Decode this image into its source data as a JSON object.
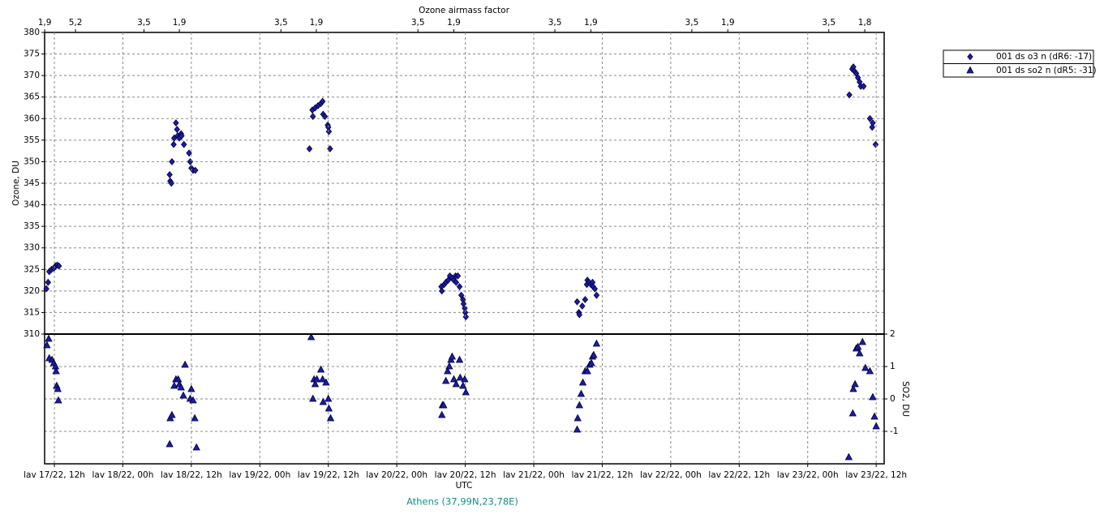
{
  "chart_data": [
    {
      "type": "scatter",
      "ylabel": "Ozone, DU",
      "x2label": "Ozone airmass factor",
      "xlim": [
        10.29,
        157.4
      ],
      "ylim": [
        310,
        380
      ],
      "yticks": [
        310,
        315,
        320,
        325,
        330,
        335,
        340,
        345,
        350,
        355,
        360,
        365,
        370,
        375,
        380
      ],
      "x2ticks": [
        {
          "value": 10.3,
          "label": "1,9"
        },
        {
          "value": 15.7,
          "label": "5,2"
        },
        {
          "value": 27.7,
          "label": "3,5"
        },
        {
          "value": 33.9,
          "label": "1,9"
        },
        {
          "value": 51.7,
          "label": "3,5"
        },
        {
          "value": 57.9,
          "label": "1,9"
        },
        {
          "value": 75.7,
          "label": "3,5"
        },
        {
          "value": 82.0,
          "label": "1,9"
        },
        {
          "value": 99.7,
          "label": "3,5"
        },
        {
          "value": 106.0,
          "label": "1,9"
        },
        {
          "value": 123.7,
          "label": "3,5"
        },
        {
          "value": 130.0,
          "label": "1,9"
        },
        {
          "value": 147.7,
          "label": "3,5"
        },
        {
          "value": 154.0,
          "label": "1,8"
        }
      ],
      "grid": true,
      "series": [
        {
          "name": "001 ds o3  n (dR6: -17)",
          "color": "#1c1ca8",
          "marker": "diamond",
          "x": [
            10.6,
            10.9,
            11.1,
            11.5,
            11.9,
            12.2,
            12.5,
            12.8,
            32.2,
            32.3,
            32.5,
            32.6,
            32.9,
            33.0,
            33.3,
            33.5,
            33.6,
            33.9,
            34.2,
            34.3,
            34.7,
            35.6,
            35.8,
            36.0,
            36.3,
            36.7,
            56.7,
            57.2,
            57.3,
            57.7,
            58.2,
            58.7,
            59.0,
            59.1,
            59.4,
            59.9,
            60.0,
            60.1,
            60.3,
            79.8,
            79.9,
            80.3,
            80.6,
            81.0,
            81.3,
            81.7,
            82.0,
            82.3,
            82.4,
            82.7,
            83.0,
            83.3,
            83.6,
            83.7,
            83.9,
            84.0,
            84.1,
            103.6,
            103.9,
            104.0,
            104.5,
            105.0,
            105.3,
            105.4,
            105.7,
            106.0,
            106.3,
            106.4,
            106.7,
            107.0,
            151.3,
            151.8,
            152.0,
            152.2,
            152.5,
            152.8,
            153.1,
            153.3,
            153.8,
            154.9,
            155.3,
            155.4,
            155.9
          ],
          "values": [
            320.5,
            322,
            324.5,
            325,
            325.3,
            325.8,
            326,
            325.8,
            347,
            345.5,
            345,
            350,
            354,
            355.5,
            359,
            357.5,
            356,
            355.5,
            356.5,
            356,
            354,
            352,
            350,
            348.5,
            348,
            348,
            353,
            362,
            360.5,
            362.5,
            363,
            363.5,
            364,
            361,
            360.5,
            358.5,
            358,
            357,
            353,
            321,
            320,
            321.5,
            322,
            322.5,
            323.5,
            323,
            322.5,
            323.5,
            322,
            323.5,
            321,
            319,
            318,
            317,
            316,
            315,
            314,
            317.5,
            315,
            314.5,
            316.5,
            318,
            321.5,
            322.5,
            322,
            321.5,
            322,
            321,
            320.5,
            319,
            365.5,
            371.5,
            372,
            371,
            370.5,
            369.5,
            368.5,
            367.5,
            367.5,
            360,
            358,
            359,
            354
          ]
        }
      ]
    },
    {
      "type": "scatter",
      "y2label": "SO2, DU",
      "xlabel": "UTC",
      "caption": "Athens (37,99N,23,78E)",
      "xlim": [
        10.29,
        157.4
      ],
      "y2lim": [
        -2,
        2
      ],
      "y2ticks": [
        -1,
        0,
        1,
        2
      ],
      "xticks": [
        {
          "value": 12,
          "label": "lav 17/22, 12h"
        },
        {
          "value": 24,
          "label": "lav 18/22, 00h"
        },
        {
          "value": 36,
          "label": "lav 18/22, 12h"
        },
        {
          "value": 48,
          "label": "lav 19/22, 00h"
        },
        {
          "value": 60,
          "label": "lav 19/22, 12h"
        },
        {
          "value": 72,
          "label": "lav 20/22, 00h"
        },
        {
          "value": 84,
          "label": "lav 20/22, 12h"
        },
        {
          "value": 96,
          "label": "lav 21/22, 00h"
        },
        {
          "value": 108,
          "label": "lav 21/22, 12h"
        },
        {
          "value": 120,
          "label": "lav 22/22, 00h"
        },
        {
          "value": 132,
          "label": "lav 22/22, 12h"
        },
        {
          "value": 144,
          "label": "lav 23/22, 00h"
        },
        {
          "value": 156,
          "label": "lav 23/22, 12h"
        }
      ],
      "grid": true,
      "series": [
        {
          "name": "001 ds so2 n (dR5: -31)",
          "color": "#1c1ca8",
          "marker": "triangle",
          "axis": "y2",
          "x": [
            10.7,
            11.0,
            11.1,
            11.6,
            11.9,
            12.2,
            12.3,
            12.4,
            12.6,
            12.7,
            32.2,
            32.3,
            32.6,
            33.0,
            33.3,
            33.7,
            33.9,
            34.2,
            34.6,
            34.9,
            35.8,
            36.0,
            36.3,
            36.6,
            36.9,
            57.0,
            57.3,
            57.5,
            57.7,
            58.0,
            58.7,
            59.0,
            59.1,
            59.6,
            60.0,
            60.1,
            60.4,
            79.9,
            80.0,
            80.2,
            80.6,
            80.9,
            81.2,
            81.5,
            81.7,
            82.0,
            82.4,
            83.0,
            83.1,
            83.6,
            83.9,
            84.1,
            103.6,
            103.7,
            104.0,
            104.3,
            104.6,
            105.0,
            105.4,
            105.8,
            106.1,
            106.3,
            106.5,
            107.0,
            151.2,
            151.9,
            152.0,
            152.3,
            152.5,
            152.8,
            153.1,
            153.6,
            154.1,
            154.9,
            155.4,
            155.7,
            156.0
          ],
          "values": [
            1.65,
            1.85,
            1.25,
            1.2,
            1.1,
            1.0,
            0.85,
            0.4,
            0.3,
            -0.05,
            -1.4,
            -0.6,
            -0.5,
            0.4,
            0.6,
            0.6,
            0.45,
            0.35,
            0.1,
            1.05,
            0,
            0.3,
            -0.05,
            -0.6,
            -1.5,
            1.9,
            0,
            0.6,
            0.45,
            0.6,
            0.9,
            0.6,
            -0.1,
            0.5,
            0,
            -0.3,
            -0.6,
            -0.5,
            -0.2,
            -0.2,
            0.55,
            0.85,
            1.0,
            1.2,
            1.3,
            0.6,
            0.45,
            1.2,
            0.65,
            0.4,
            0.6,
            0.2,
            -0.95,
            -0.6,
            -0.2,
            0.15,
            0.5,
            0.85,
            0.85,
            1.05,
            1.1,
            1.3,
            1.35,
            1.7,
            -1.8,
            -0.45,
            0.3,
            0.45,
            1.55,
            1.6,
            1.4,
            1.75,
            0.95,
            0.85,
            0.05,
            -0.55,
            -0.85
          ]
        }
      ]
    }
  ]
}
